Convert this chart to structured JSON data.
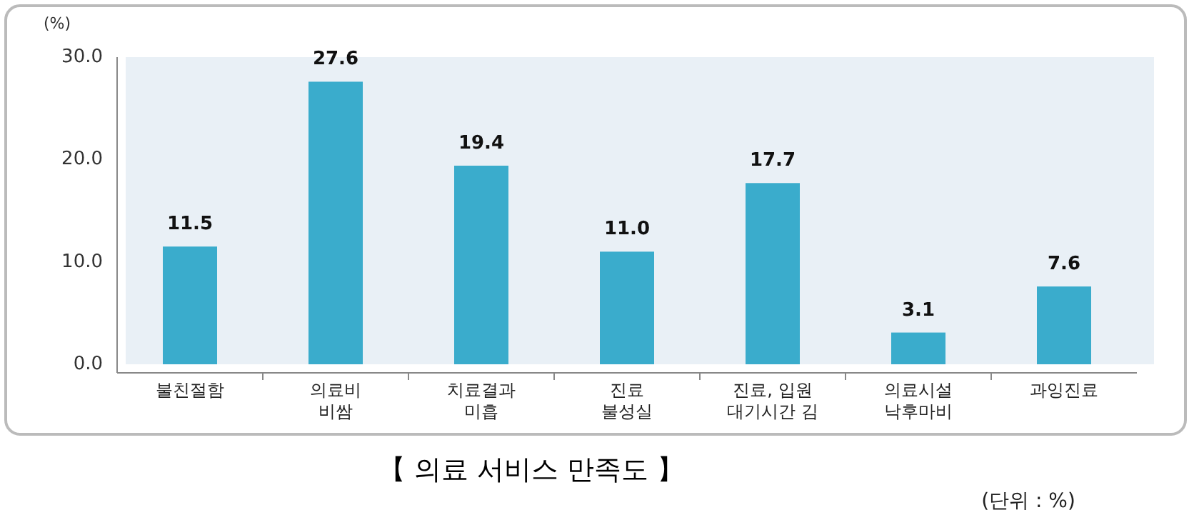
{
  "chart_data": {
    "type": "bar",
    "title": "【 의료 서비스 만족도 】",
    "ylabel": "(%)",
    "annotations": [
      "(단위 : %)"
    ],
    "categories": [
      "불친절함",
      "의료비\n비쌈",
      "치료결과\n미흡",
      "진료\n불성실",
      "진료, 입원\n대기시간 김",
      "의료시설\n낙후마비",
      "과잉진료"
    ],
    "values": [
      11.5,
      27.6,
      19.4,
      11.0,
      17.7,
      3.1,
      7.6
    ],
    "value_labels": [
      "11.5",
      "27.6",
      "19.4",
      "11.0",
      "17.7",
      "3.1",
      "7.6"
    ],
    "color": "#3aaccc",
    "ylim": [
      0,
      30
    ],
    "yticks": [
      {
        "value": 0,
        "label": "0.0"
      },
      {
        "value": 10,
        "label": "10.0"
      },
      {
        "value": 20,
        "label": "20.0"
      },
      {
        "value": 30,
        "label": "30.0"
      }
    ]
  }
}
